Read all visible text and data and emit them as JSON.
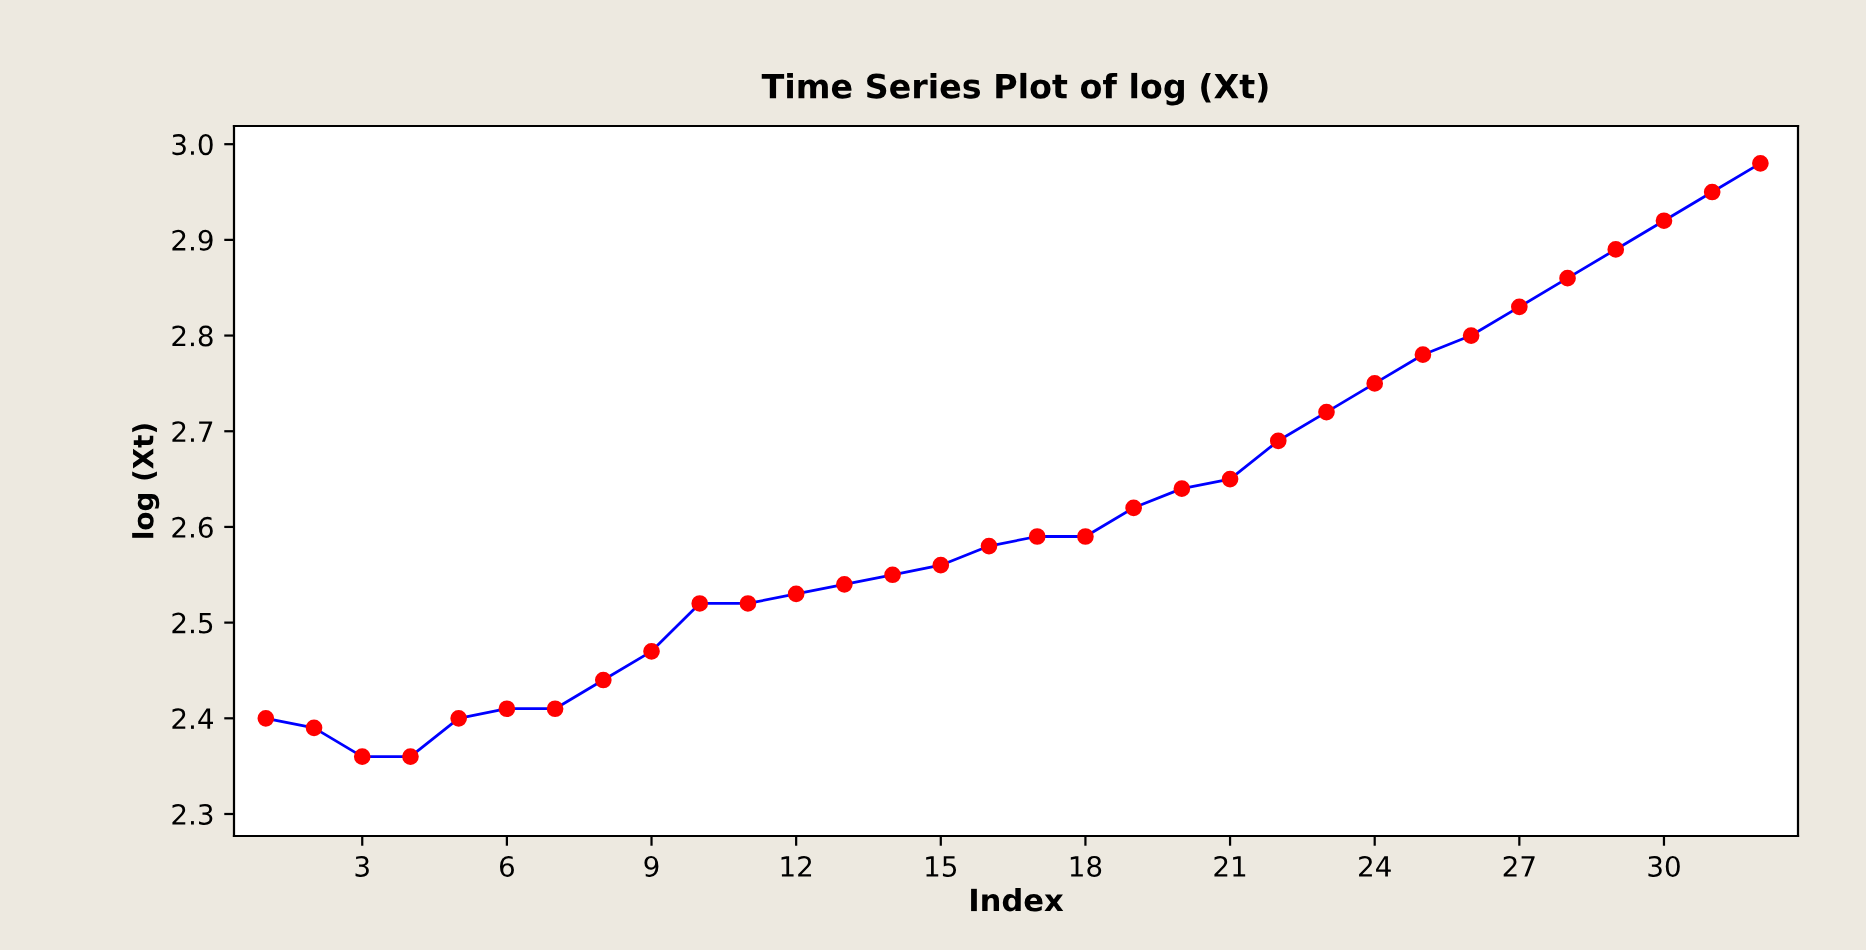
{
  "chart_data": {
    "type": "line",
    "title": "Time Series Plot of log (Xt)",
    "xlabel": "Index",
    "ylabel": "log (Xt)",
    "x": [
      1,
      2,
      3,
      4,
      5,
      6,
      7,
      8,
      9,
      10,
      11,
      12,
      13,
      14,
      15,
      16,
      17,
      18,
      19,
      20,
      21,
      22,
      23,
      24,
      25,
      26,
      27,
      28,
      29,
      30,
      31,
      32
    ],
    "series": [
      {
        "color": "#0000ff",
        "values": [
          2.4,
          2.39,
          2.36,
          2.36,
          2.4,
          2.41,
          2.41,
          2.44,
          2.47,
          2.52,
          2.52,
          2.53,
          2.54,
          2.55,
          2.56,
          2.58,
          2.59,
          2.59,
          2.62,
          2.64,
          2.65,
          2.69,
          2.72,
          2.75,
          2.78,
          2.8,
          2.83,
          2.86,
          2.89,
          2.92,
          2.95,
          2.98
        ],
        "colors": [
          "#ff0000",
          "#ff0000",
          "#ff0000",
          "#ff0000",
          "#ff0000",
          "#ff0000",
          "#ff0000",
          "#ff0000",
          "#ff0000",
          "#ff0000",
          "#ff0000",
          "#ff0000",
          "#ff0000",
          "#ff0000",
          "#ff0000",
          "#ff0000",
          "#ff0000",
          "#ff0000",
          "#ff0000",
          "#ff0000",
          "#ff0000",
          "#ff0000",
          "#ff0000",
          "#ff0000",
          "#ff0000",
          "#ff0000",
          "#ff0000",
          "#ff0000",
          "#ff0000",
          "#ff0000",
          "#ff0000",
          "#ff0000"
        ]
      }
    ],
    "marker": "circle",
    "line_style": "solid",
    "grid": false,
    "legend": false,
    "xlim": [
      0.34,
      32.78
    ],
    "xticks": [
      3,
      6,
      9,
      12,
      15,
      18,
      21,
      24,
      27,
      30
    ],
    "ylim": [
      2.277,
      3.019
    ],
    "yticks": [
      {
        "value": 2.3,
        "label": "2.3"
      },
      {
        "value": 2.4,
        "label": "2.4"
      },
      {
        "value": 2.5,
        "label": "2.5"
      },
      {
        "value": 2.6,
        "label": "2.6"
      },
      {
        "value": 2.7,
        "label": "2.7"
      },
      {
        "value": 2.8,
        "label": "2.8"
      },
      {
        "value": 2.9,
        "label": "2.9"
      },
      {
        "value": 3.0,
        "label": "3.0"
      }
    ]
  }
}
